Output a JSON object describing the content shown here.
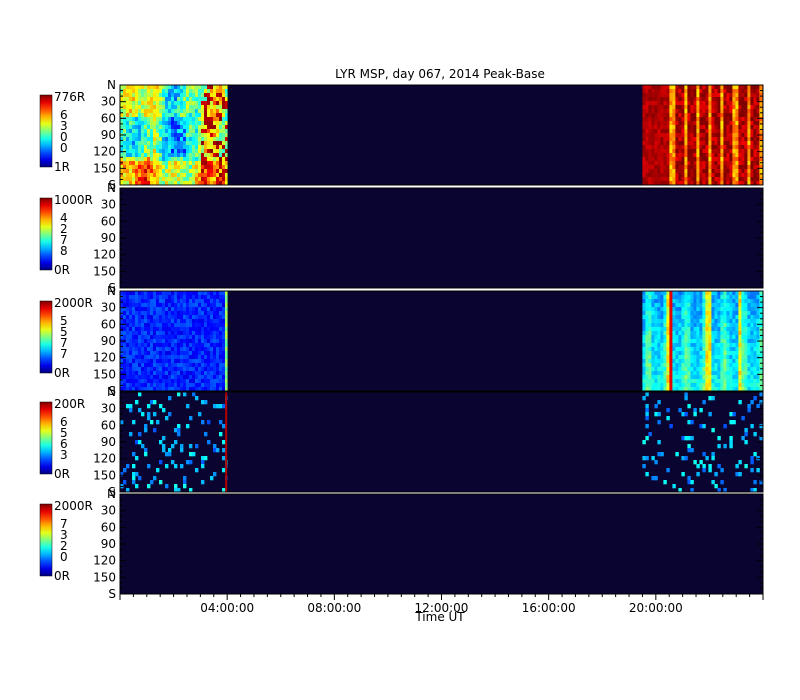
{
  "chart_data": {
    "type": "heatmap",
    "title": "LYR MSP, day 067, 2014 Peak-Base",
    "xlabel": "Time UT",
    "x_ticks": [
      "04:00:00",
      "08:00:00",
      "12:00:00",
      "16:00:00",
      "20:00:00"
    ],
    "xlim_hours": [
      0,
      24
    ],
    "y_axis": {
      "top_label": "N",
      "bottom_label": "S",
      "ticks": [
        "30",
        "60",
        "90",
        "120",
        "150"
      ],
      "ylim": [
        0,
        180
      ]
    },
    "data_windows_hours": [
      [
        0,
        4
      ],
      [
        19.5,
        24
      ]
    ],
    "panels": [
      {
        "cbar_max": "776R",
        "cbar_min": "1R",
        "cbar_digits": [
          "6",
          "3",
          "0",
          "0"
        ]
      },
      {
        "cbar_max": "1000R",
        "cbar_min": "0R",
        "cbar_digits": [
          "4",
          "2",
          "7",
          "8"
        ]
      },
      {
        "cbar_max": "2000R",
        "cbar_min": "0R",
        "cbar_digits": [
          "5",
          "5",
          "7",
          "7"
        ]
      },
      {
        "cbar_max": "200R",
        "cbar_min": "0R",
        "cbar_digits": [
          "6",
          "5",
          "6",
          "3"
        ]
      },
      {
        "cbar_max": "2000R",
        "cbar_min": "0R",
        "cbar_digits": [
          "7",
          "3",
          "2",
          "0"
        ]
      }
    ],
    "background_color": "#0a0530"
  }
}
